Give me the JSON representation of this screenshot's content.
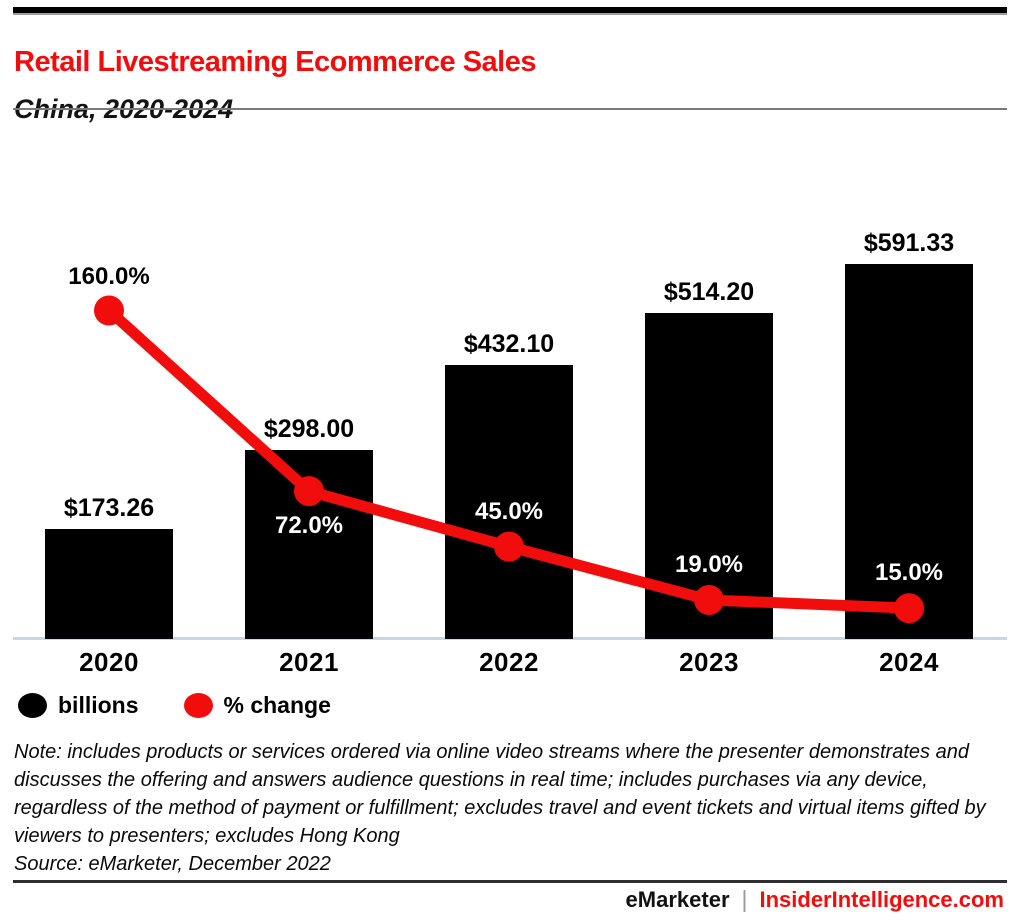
{
  "header": {
    "title": "Retail Livestreaming Ecommerce Sales",
    "subtitle": "China, 2020-2024"
  },
  "chart_data": {
    "type": "bar",
    "title": "Retail Livestreaming Ecommerce Sales",
    "subtitle": "China, 2020-2024",
    "categories": [
      "2020",
      "2021",
      "2022",
      "2023",
      "2024"
    ],
    "series": [
      {
        "name": "billions",
        "type": "bar",
        "values": [
          173.26,
          298.0,
          432.1,
          514.2,
          591.33
        ],
        "labels": [
          "$173.26",
          "$298.00",
          "$432.10",
          "$514.20",
          "$591.33"
        ],
        "color": "#000000"
      },
      {
        "name": "% change",
        "type": "line",
        "values": [
          160.0,
          72.0,
          45.0,
          19.0,
          15.0
        ],
        "labels": [
          "160.0%",
          "72.0%",
          "45.0%",
          "19.0%",
          "15.0%"
        ],
        "color": "#f20d0d"
      }
    ],
    "xlabel": "",
    "ylabel": "",
    "ylim_bar": [
      0,
      640
    ],
    "ylim_line": [
      0,
      175
    ],
    "grid": false,
    "legend_position": "bottom-left"
  },
  "legend": {
    "items": [
      {
        "label": "billions",
        "color": "#000000"
      },
      {
        "label": "% change",
        "color": "#f20d0d"
      }
    ]
  },
  "note": "Note: includes products or services ordered via online video streams where the presenter demonstrates and discusses the offering and answers audience questions in real time; includes purchases via any device, regardless of the method of payment or fulfillment; excludes travel and event tickets and virtual items gifted by viewers to presenters; excludes Hong Kong",
  "source": "Source: eMarketer, December 2022",
  "footer": {
    "brand": "eMarketer",
    "divider": "|",
    "site": "InsiderIntelligence.com"
  },
  "colors": {
    "accent_red": "#f20d0d",
    "bar_black": "#000000",
    "axis_line": "#ccd5e8"
  }
}
